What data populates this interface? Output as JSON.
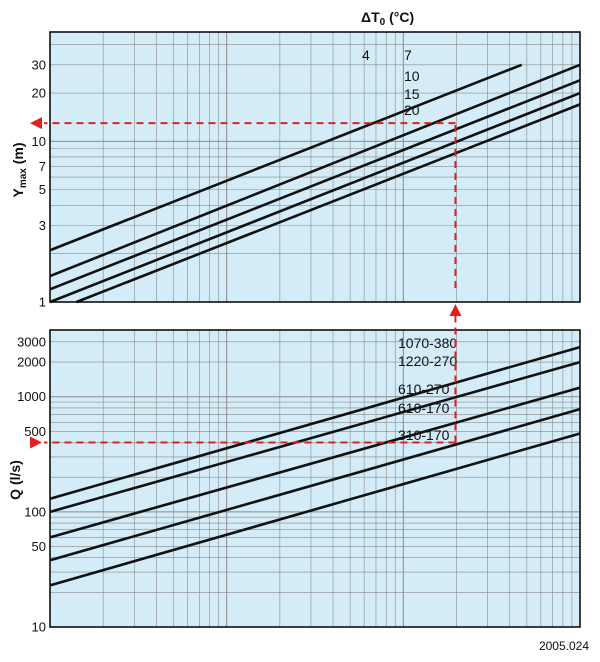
{
  "header": {
    "delta": "ΔT",
    "sub": "0",
    "unit": " (°C)"
  },
  "footer": {
    "code": "2005.024"
  },
  "colors": {
    "background": "#d3ecf8",
    "grid": "#8a8a8a",
    "frame": "#000000",
    "curve": "#111111",
    "guide": "#e02020"
  },
  "chart_data": [
    {
      "type": "line",
      "ylabel_main": "Y",
      "ylabel_sub": "max",
      "ylabel_unit": " (m)",
      "yscale": "log",
      "ylim": [
        1,
        48
      ],
      "x_decades": 3,
      "yticks": [
        "1",
        "3",
        "5",
        "7",
        "10",
        "20",
        "30"
      ],
      "ytick_values": [
        1,
        3,
        5,
        7,
        10,
        20,
        30
      ],
      "series": [
        {
          "name": "4",
          "x": [
            0.0,
            0.89
          ],
          "y": [
            2.1,
            30
          ]
        },
        {
          "name": "7",
          "x": [
            0.0,
            1.0
          ],
          "y": [
            1.45,
            30
          ]
        },
        {
          "name": "10",
          "x": [
            0.0,
            1.0
          ],
          "y": [
            1.2,
            24
          ]
        },
        {
          "name": "15",
          "x": [
            0.0,
            1.0
          ],
          "y": [
            1.0,
            20
          ]
        },
        {
          "name": "20",
          "x": [
            0.05,
            1.0
          ],
          "y": [
            1.0,
            17
          ]
        }
      ],
      "guide": {
        "x": 0.765,
        "y": 13
      }
    },
    {
      "type": "line",
      "ylabel_main": "Q",
      "ylabel_unit": " (l/s)",
      "yscale": "log",
      "ylim": [
        10,
        3800
      ],
      "x_decades": 3,
      "yticks": [
        "10",
        "50",
        "100",
        "500",
        "1000",
        "2000",
        "3000"
      ],
      "ytick_values": [
        10,
        50,
        100,
        500,
        1000,
        2000,
        3000
      ],
      "series": [
        {
          "name": "1070-380",
          "x": [
            0.0,
            1.0
          ],
          "y": [
            130,
            2700
          ]
        },
        {
          "name": "1220-270",
          "x": [
            0.0,
            1.0
          ],
          "y": [
            100,
            2000
          ]
        },
        {
          "name": "610-270",
          "x": [
            0.0,
            1.0
          ],
          "y": [
            60,
            1200
          ]
        },
        {
          "name": "610-170",
          "x": [
            0.0,
            1.0
          ],
          "y": [
            38,
            780
          ]
        },
        {
          "name": "310-170",
          "x": [
            0.0,
            1.0
          ],
          "y": [
            23,
            480
          ]
        }
      ],
      "guide": {
        "x": 0.765,
        "y": 400
      }
    }
  ]
}
